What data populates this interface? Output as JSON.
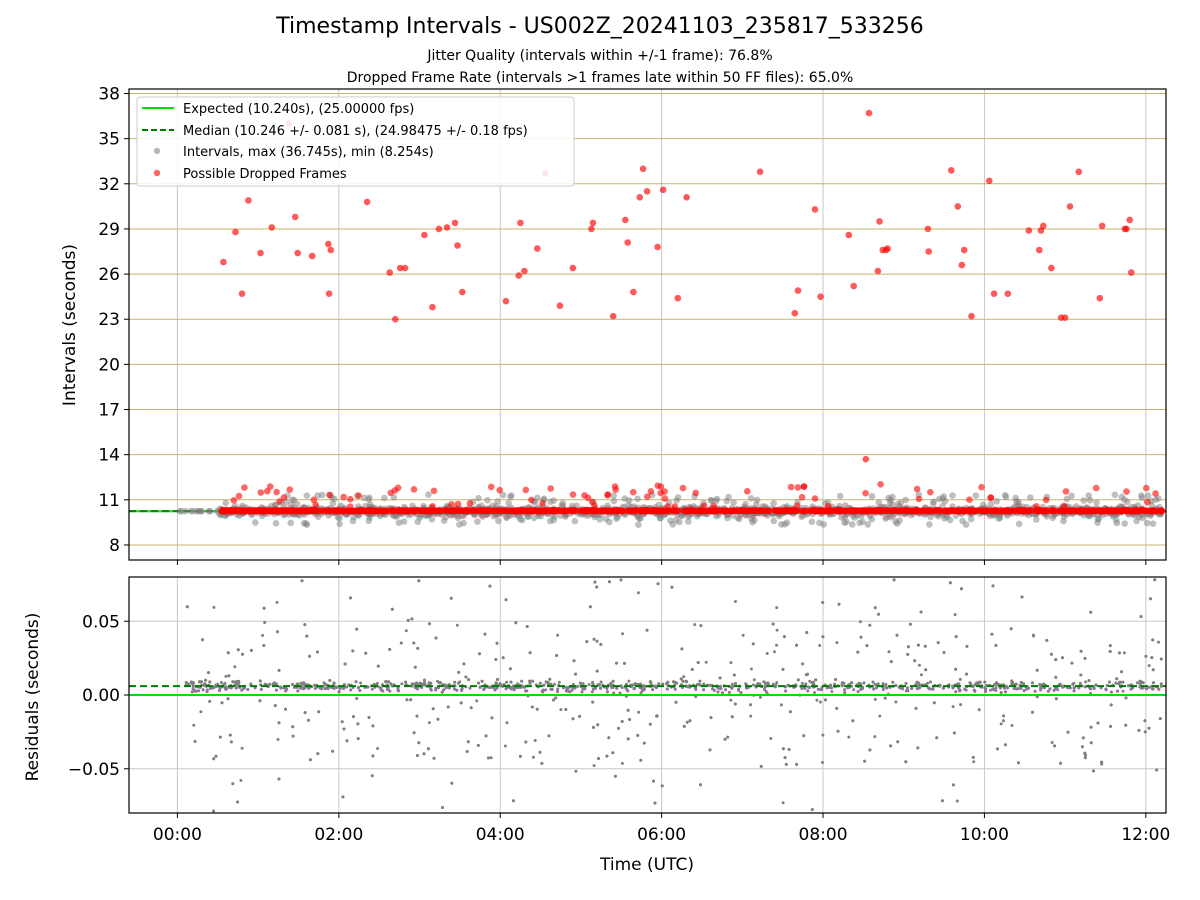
{
  "title": "Timestamp Intervals - US002Z_20241103_235817_533256",
  "subtitle_1": "Jitter Quality (intervals within +/-1 frame): 76.8%",
  "subtitle_2": "Dropped Frame Rate (intervals >1 frames late within 50 FF files): 65.0%",
  "colors": {
    "expected": "#00e000",
    "median": "#007a00",
    "intervals": "#808080",
    "dropped": "#ff0000",
    "hgrid_top": "#c9b56a",
    "grid": "#c8c8c8"
  },
  "chart_data": [
    {
      "type": "scatter",
      "panel": "intervals",
      "ylabel": "Intervals (seconds)",
      "xlabel": "",
      "xlim_hours": [
        -0.6,
        12.25
      ],
      "ylim": [
        7,
        38.3
      ],
      "y_ticks": [
        8,
        11,
        14,
        17,
        20,
        23,
        26,
        29,
        32,
        35,
        38
      ],
      "x_tick_labels": [
        "00:00",
        "02:00",
        "04:00",
        "06:00",
        "08:00",
        "10:00",
        "12:00"
      ],
      "grid": true,
      "legend_position": "upper-left",
      "legend": [
        "Expected (10.240s), (25.00000 fps)",
        "Median (10.246 +/- 0.081 s), (24.98475 +/- 0.18 fps)",
        "Intervals, max (36.745s), min (8.254s)",
        "Possible Dropped Frames"
      ],
      "expected_interval": 10.24,
      "median_interval": 10.246,
      "max_interval": 36.745,
      "min_interval": 8.254,
      "dropped_frames": {
        "x_hours": [
          0.57,
          0.72,
          0.8,
          0.88,
          1.03,
          1.17,
          1.38,
          1.46,
          1.49,
          1.67,
          1.87,
          1.9,
          1.88,
          2.35,
          2.63,
          2.7,
          2.76,
          2.82,
          3.06,
          3.16,
          3.24,
          3.34,
          3.44,
          3.47,
          3.53,
          4.07,
          4.23,
          4.25,
          4.3,
          4.46,
          4.56,
          4.74,
          4.9,
          5.13,
          5.15,
          5.4,
          5.55,
          5.58,
          5.65,
          5.73,
          5.77,
          5.82,
          5.95,
          6.02,
          6.2,
          6.31,
          7.22,
          7.65,
          7.69,
          7.9,
          7.97,
          8.32,
          8.38,
          8.57,
          8.68,
          8.7,
          8.74,
          8.78,
          8.8,
          9.3,
          9.31,
          9.59,
          9.67,
          9.72,
          9.75,
          9.84,
          10.06,
          10.12,
          10.29,
          10.55,
          10.68,
          10.7,
          10.73,
          10.83,
          10.95,
          11.0,
          11.06,
          11.17,
          11.43,
          11.46,
          11.74,
          11.76,
          11.8,
          11.82
        ],
        "y": [
          26.8,
          28.8,
          24.7,
          30.9,
          27.4,
          29.1,
          36.0,
          29.8,
          27.4,
          27.2,
          28.0,
          27.6,
          24.7,
          30.8,
          26.1,
          23.0,
          26.4,
          26.4,
          28.6,
          23.8,
          29.0,
          29.1,
          29.4,
          27.9,
          24.8,
          24.2,
          25.9,
          29.4,
          26.2,
          27.7,
          32.7,
          23.9,
          26.4,
          29.0,
          29.4,
          23.2,
          29.6,
          28.1,
          24.8,
          31.1,
          33.0,
          31.5,
          27.8,
          31.6,
          24.4,
          31.1,
          32.8,
          23.4,
          24.9,
          30.3,
          24.5,
          28.6,
          25.2,
          36.7,
          26.2,
          29.5,
          27.6,
          27.6,
          27.7,
          29.0,
          27.5,
          32.9,
          30.5,
          26.6,
          27.6,
          23.2,
          32.2,
          24.7,
          24.7,
          28.9,
          27.6,
          28.9,
          29.2,
          26.4,
          23.1,
          23.1,
          30.5,
          32.8,
          24.4,
          29.2,
          29.0,
          29.0,
          29.6,
          26.1
        ]
      },
      "band_points_note": "dense band of ~2000 intervals around 10.24 s (approx. 9.0 to 12.5 s) spanning 0.5 h to 12.2 h"
    },
    {
      "type": "scatter",
      "panel": "residuals",
      "ylabel": "Residuals (seconds)",
      "xlabel": "Time (UTC)",
      "xlim_hours": [
        -0.6,
        12.25
      ],
      "ylim": [
        -0.08,
        0.08
      ],
      "y_ticks": [
        -0.05,
        0.0,
        0.05
      ],
      "y_tick_labels": [
        "−0.05",
        "0.00",
        "0.05"
      ],
      "x_tick_labels": [
        "00:00",
        "02:00",
        "04:00",
        "06:00",
        "08:00",
        "10:00",
        "12:00"
      ],
      "grid": true,
      "expected_residual": 0.0,
      "median_residual": 0.006
    }
  ]
}
